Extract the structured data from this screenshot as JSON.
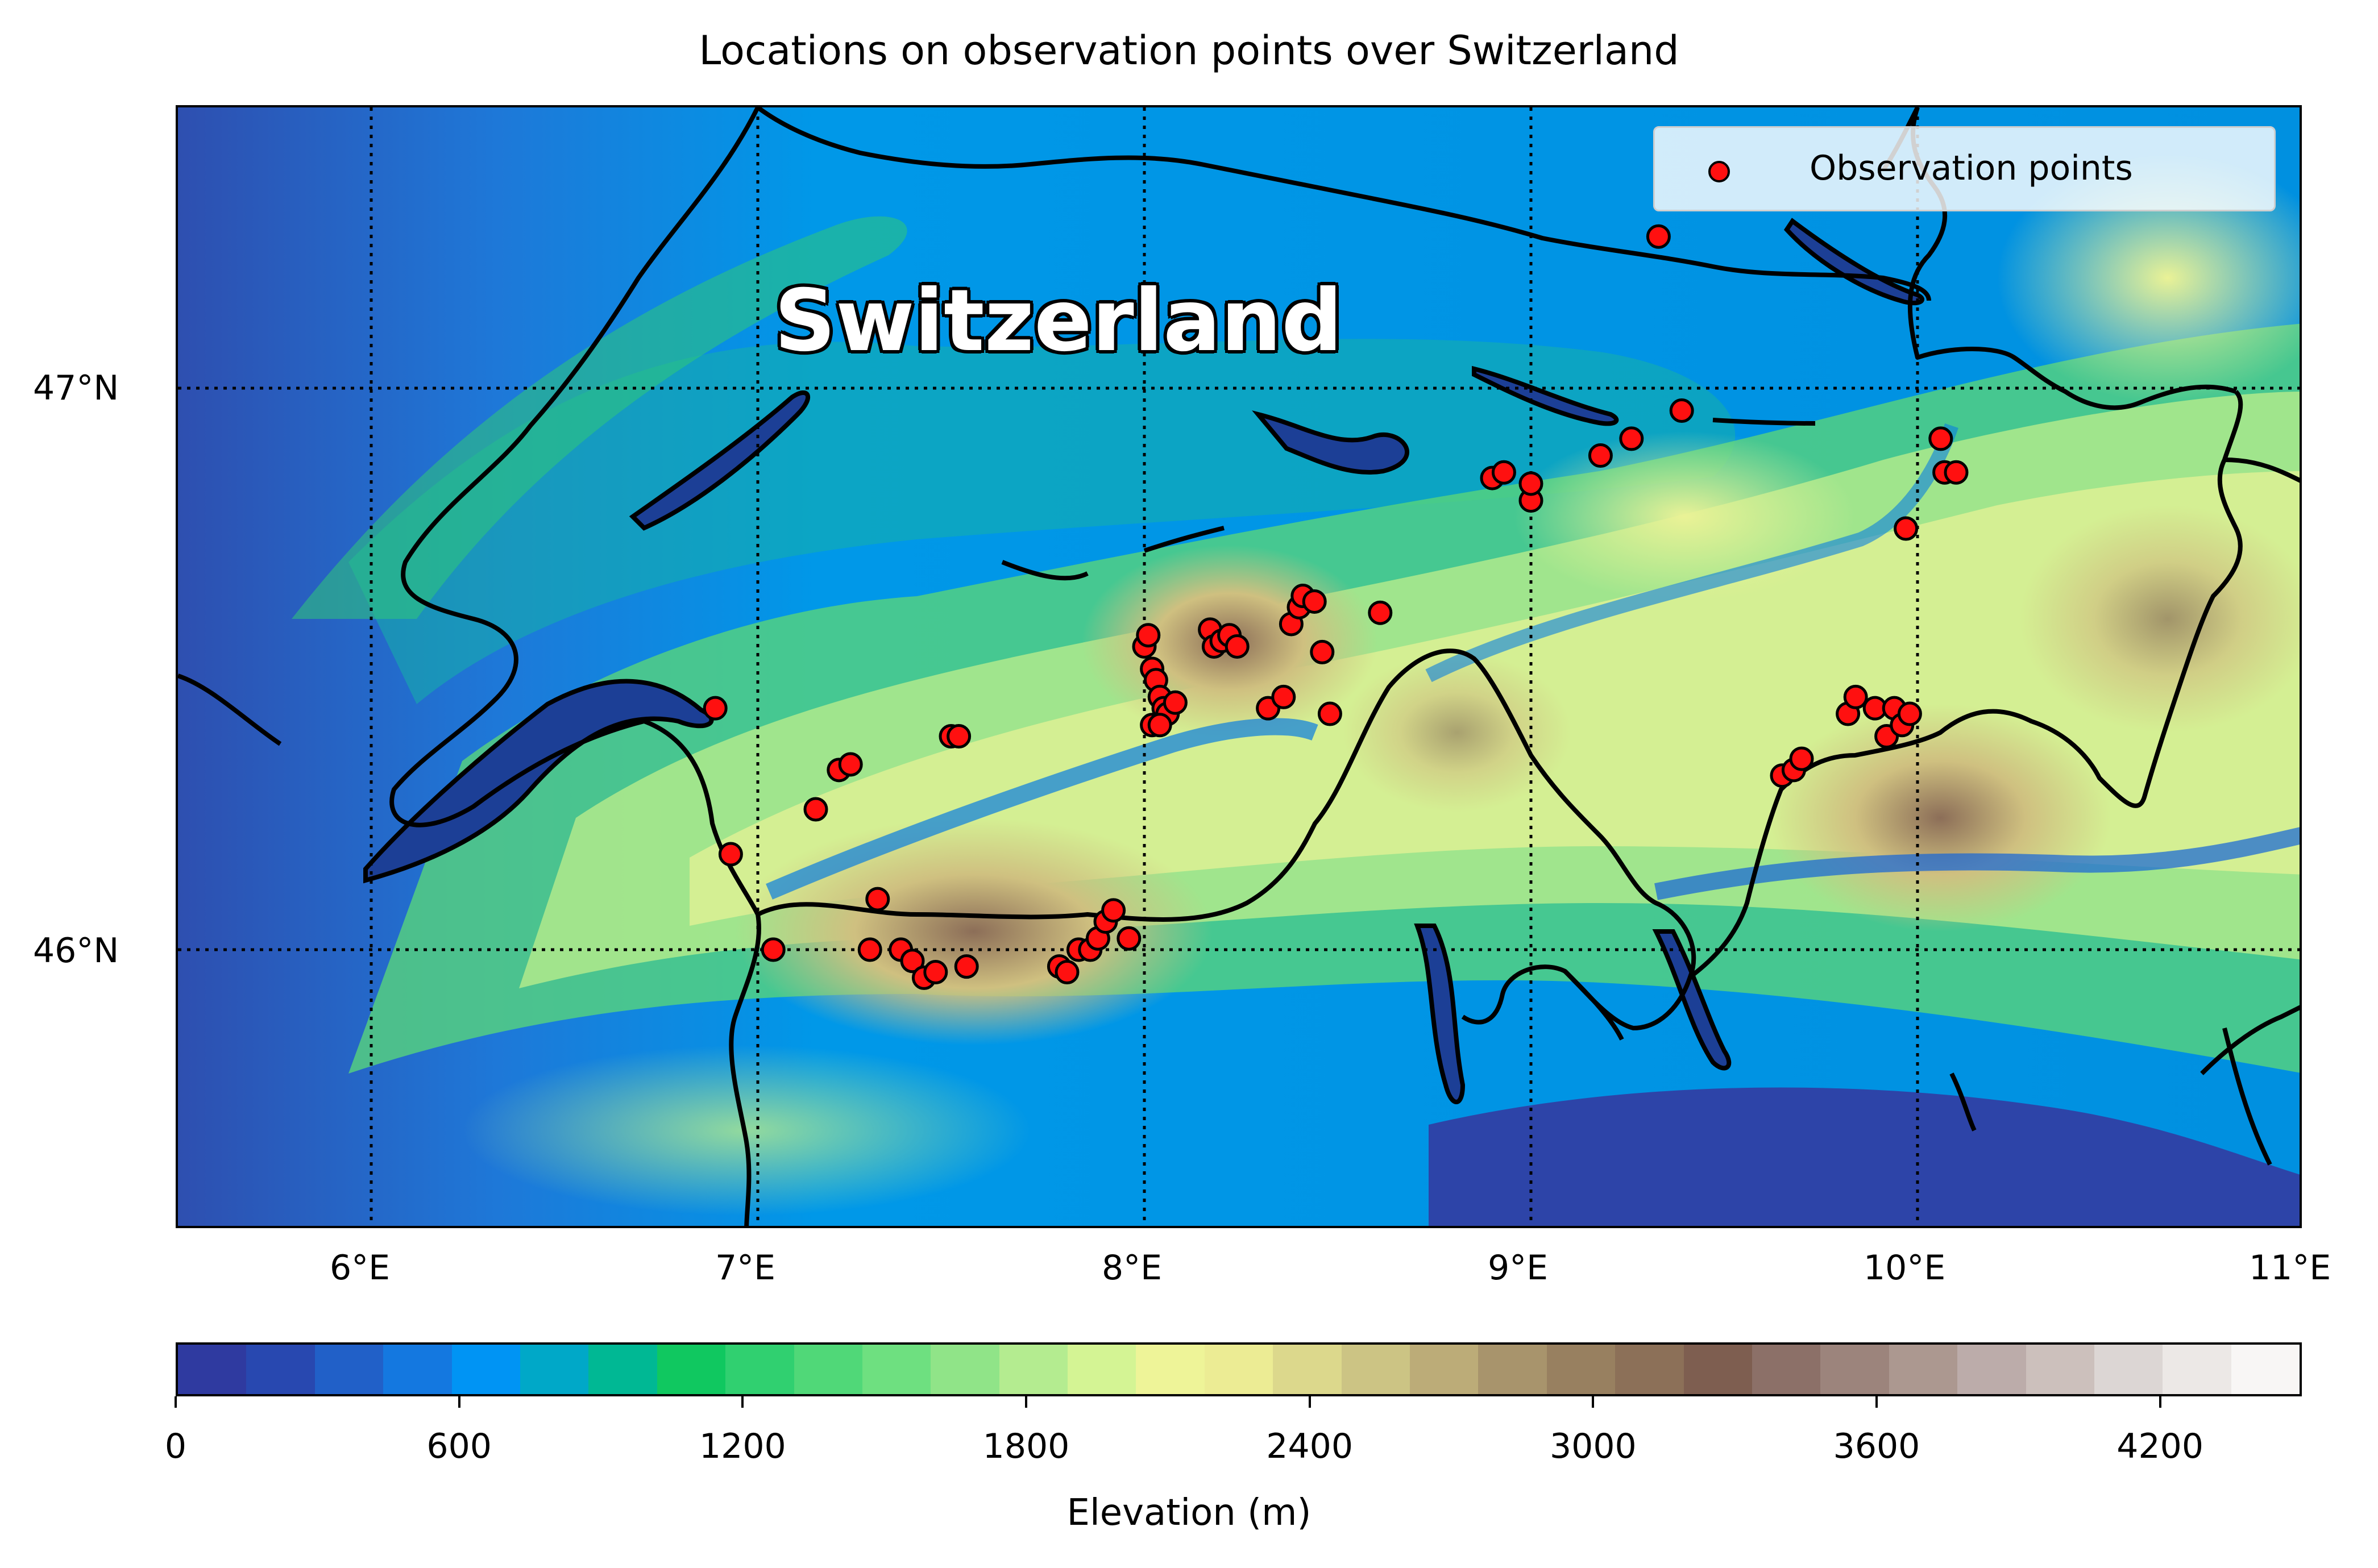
{
  "title": "Locations on observation points over Switzerland",
  "map_label": "Switzerland",
  "legend": {
    "label": "Observation points",
    "marker": "red-circle-icon"
  },
  "axes": {
    "y_ticks": [
      "47°N",
      "46°N"
    ],
    "x_ticks": [
      "6°E",
      "7°E",
      "8°E",
      "9°E",
      "10°E",
      "11°E"
    ],
    "lon_range": [
      5.5,
      11.0
    ],
    "lat_range": [
      45.5,
      47.5
    ],
    "grid": "dotted"
  },
  "colorbar": {
    "label": "Elevation (m)",
    "ticks": [
      "0",
      "600",
      "1200",
      "1800",
      "2400",
      "3000",
      "3600",
      "4200"
    ],
    "range": [
      0,
      4500
    ],
    "colors": [
      "#2f3aa0",
      "#2848b0",
      "#2160c8",
      "#1478e0",
      "#0094f4",
      "#00a8c8",
      "#00b894",
      "#10c860",
      "#30d070",
      "#50d878",
      "#6ee080",
      "#90e488",
      "#b4ec90",
      "#d4f494",
      "#eef498",
      "#ecec94",
      "#dcd88c",
      "#ccc484",
      "#bcac78",
      "#a8946c",
      "#988060",
      "#8c7058",
      "#7e5e50",
      "#8c7068",
      "#9c847c",
      "#ac9890",
      "#bcacaa",
      "#ccc0bc",
      "#dcd6d4",
      "#ece8e6",
      "#f8f6f5"
    ]
  },
  "chart_data": {
    "type": "scatter",
    "x_label": "",
    "y_label": "",
    "series": [
      {
        "name": "Observation points",
        "points": [
          [
            6.89,
            46.43
          ],
          [
            6.93,
            46.17
          ],
          [
            7.04,
            46.0
          ],
          [
            7.15,
            46.25
          ],
          [
            7.21,
            46.32
          ],
          [
            7.24,
            46.33
          ],
          [
            7.29,
            46.0
          ],
          [
            7.31,
            46.09
          ],
          [
            7.37,
            46.0
          ],
          [
            7.4,
            45.98
          ],
          [
            7.43,
            45.95
          ],
          [
            7.46,
            45.96
          ],
          [
            7.5,
            46.38
          ],
          [
            7.52,
            46.38
          ],
          [
            7.54,
            45.97
          ],
          [
            7.78,
            45.97
          ],
          [
            7.8,
            45.96
          ],
          [
            7.83,
            46.0
          ],
          [
            7.86,
            46.0
          ],
          [
            7.88,
            46.02
          ],
          [
            7.9,
            46.05
          ],
          [
            7.92,
            46.07
          ],
          [
            7.96,
            46.02
          ],
          [
            8.0,
            46.54
          ],
          [
            8.01,
            46.56
          ],
          [
            8.02,
            46.5
          ],
          [
            8.03,
            46.48
          ],
          [
            8.04,
            46.45
          ],
          [
            8.05,
            46.43
          ],
          [
            8.06,
            46.42
          ],
          [
            8.08,
            46.44
          ],
          [
            8.02,
            46.4
          ],
          [
            8.04,
            46.4
          ],
          [
            8.17,
            46.57
          ],
          [
            8.18,
            46.54
          ],
          [
            8.2,
            46.55
          ],
          [
            8.22,
            46.56
          ],
          [
            8.24,
            46.54
          ],
          [
            8.32,
            46.43
          ],
          [
            8.36,
            46.45
          ],
          [
            8.38,
            46.58
          ],
          [
            8.4,
            46.61
          ],
          [
            8.41,
            46.63
          ],
          [
            8.44,
            46.62
          ],
          [
            8.46,
            46.53
          ],
          [
            8.48,
            46.42
          ],
          [
            8.61,
            46.6
          ],
          [
            8.9,
            46.84
          ],
          [
            8.93,
            46.85
          ],
          [
            9.0,
            46.8
          ],
          [
            9.0,
            46.83
          ],
          [
            9.18,
            46.88
          ],
          [
            9.26,
            46.91
          ],
          [
            9.33,
            47.27
          ],
          [
            9.39,
            46.96
          ],
          [
            9.65,
            46.31
          ],
          [
            9.68,
            46.32
          ],
          [
            9.7,
            46.34
          ],
          [
            9.82,
            46.42
          ],
          [
            9.84,
            46.45
          ],
          [
            9.89,
            46.43
          ],
          [
            9.92,
            46.38
          ],
          [
            9.94,
            46.43
          ],
          [
            9.96,
            46.4
          ],
          [
            9.98,
            46.42
          ],
          [
            9.97,
            46.75
          ],
          [
            10.06,
            46.91
          ],
          [
            10.07,
            46.85
          ],
          [
            10.1,
            46.85
          ]
        ]
      }
    ]
  }
}
